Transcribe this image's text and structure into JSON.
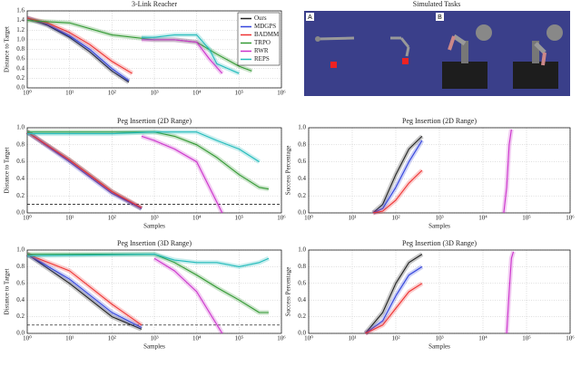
{
  "chart_data": [
    {
      "type": "line",
      "title": "3-Link Reacher",
      "ylabel": "Distance to Target",
      "legend": "upper right",
      "log_x": true,
      "grid": true,
      "xlim": [
        1,
        1000000
      ],
      "xticks": [
        {
          "value": 1,
          "label": "10⁰"
        },
        {
          "value": 10,
          "label": "10¹"
        },
        {
          "value": 100,
          "label": "10²"
        },
        {
          "value": 1000,
          "label": "10³"
        },
        {
          "value": 10000,
          "label": "10⁴"
        },
        {
          "value": 100000,
          "label": "10⁵"
        },
        {
          "value": 1000000,
          "label": "10⁶"
        }
      ],
      "ylim": [
        0,
        1.6
      ],
      "yticks": [
        {
          "value": 0,
          "label": "0.0"
        },
        {
          "value": 0.2,
          "label": "0.2"
        },
        {
          "value": 0.4,
          "label": "0.4"
        },
        {
          "value": 0.6,
          "label": "0.6"
        },
        {
          "value": 0.8,
          "label": "0.8"
        },
        {
          "value": 1.0,
          "label": "1.0"
        },
        {
          "value": 1.2,
          "label": "1.2"
        },
        {
          "value": 1.4,
          "label": "1.4"
        },
        {
          "value": 1.6,
          "label": "1.6"
        }
      ],
      "series": [
        {
          "name": "Ours",
          "color": "#222222",
          "x": [
            1,
            3,
            10,
            30,
            100,
            250
          ],
          "values": [
            1.45,
            1.3,
            1.05,
            0.75,
            0.35,
            0.12
          ]
        },
        {
          "name": "MDGPS",
          "color": "#3344dd",
          "x": [
            1,
            3,
            10,
            30,
            100,
            250
          ],
          "values": [
            1.45,
            1.32,
            1.08,
            0.8,
            0.4,
            0.15
          ]
        },
        {
          "name": "BADMM",
          "color": "#ee3333",
          "x": [
            1,
            3,
            10,
            30,
            100,
            300
          ],
          "values": [
            1.45,
            1.35,
            1.15,
            0.9,
            0.55,
            0.3
          ]
        },
        {
          "name": "TRPO",
          "color": "#339933",
          "x": [
            1,
            10,
            100,
            1000,
            3000,
            10000,
            30000,
            100000,
            200000
          ],
          "values": [
            1.4,
            1.35,
            1.1,
            1.0,
            1.0,
            0.95,
            0.7,
            0.45,
            0.35
          ]
        },
        {
          "name": "RWR",
          "color": "#cc33cc",
          "x": [
            500,
            1000,
            3000,
            10000,
            20000,
            40000
          ],
          "values": [
            1.0,
            1.0,
            1.0,
            0.95,
            0.6,
            0.3
          ]
        },
        {
          "name": "REPS",
          "color": "#22bbbb",
          "x": [
            500,
            1000,
            3000,
            10000,
            20000,
            30000,
            100000
          ],
          "values": [
            1.05,
            1.05,
            1.1,
            1.1,
            0.8,
            0.5,
            0.3
          ]
        }
      ]
    },
    {
      "type": "line",
      "title": "Peg Insertion (2D Range)",
      "xlabel": "Samples",
      "ylabel": "Distance to Target",
      "log_x": true,
      "grid": true,
      "hline": 0.1,
      "xlim": [
        1,
        1000000
      ],
      "xticks": [
        {
          "value": 1,
          "label": "10⁰"
        },
        {
          "value": 10,
          "label": "10¹"
        },
        {
          "value": 100,
          "label": "10²"
        },
        {
          "value": 1000,
          "label": "10³"
        },
        {
          "value": 10000,
          "label": "10⁴"
        },
        {
          "value": 100000,
          "label": "10⁵"
        },
        {
          "value": 1000000,
          "label": "10⁶"
        }
      ],
      "ylim": [
        0,
        1.0
      ],
      "yticks": [
        {
          "value": 0,
          "label": "0.0"
        },
        {
          "value": 0.2,
          "label": "0.2"
        },
        {
          "value": 0.4,
          "label": "0.4"
        },
        {
          "value": 0.6,
          "label": "0.6"
        },
        {
          "value": 0.8,
          "label": "0.8"
        },
        {
          "value": 1.0,
          "label": "1.0"
        }
      ],
      "series": [
        {
          "color": "#222222",
          "x": [
            1,
            10,
            100,
            500
          ],
          "values": [
            0.95,
            0.62,
            0.25,
            0.05
          ]
        },
        {
          "color": "#3344dd",
          "x": [
            1,
            10,
            100,
            500
          ],
          "values": [
            0.95,
            0.6,
            0.23,
            0.05
          ]
        },
        {
          "color": "#ee3333",
          "x": [
            1,
            10,
            100,
            500
          ],
          "values": [
            0.95,
            0.62,
            0.25,
            0.06
          ]
        },
        {
          "color": "#339933",
          "x": [
            1,
            100,
            1000,
            3000,
            10000,
            30000,
            100000,
            300000,
            500000
          ],
          "values": [
            0.95,
            0.95,
            0.95,
            0.9,
            0.8,
            0.65,
            0.45,
            0.3,
            0.28
          ]
        },
        {
          "color": "#cc33cc",
          "x": [
            500,
            1000,
            3000,
            10000,
            20000,
            40000
          ],
          "values": [
            0.9,
            0.85,
            0.75,
            0.6,
            0.3,
            0.0
          ]
        },
        {
          "color": "#22bbbb",
          "x": [
            1,
            100,
            1000,
            10000,
            30000,
            100000,
            300000
          ],
          "values": [
            0.93,
            0.93,
            0.95,
            0.95,
            0.85,
            0.75,
            0.6
          ]
        }
      ]
    },
    {
      "type": "line",
      "title": "Peg Insertion (2D Range)",
      "xlabel": "Samples",
      "ylabel": "Success Percentage",
      "log_x": true,
      "grid": true,
      "xlim": [
        1,
        1000000
      ],
      "xticks": [
        {
          "value": 1,
          "label": "10⁰"
        },
        {
          "value": 10,
          "label": "10¹"
        },
        {
          "value": 100,
          "label": "10²"
        },
        {
          "value": 1000,
          "label": "10³"
        },
        {
          "value": 10000,
          "label": "10⁴"
        },
        {
          "value": 100000,
          "label": "10⁵"
        },
        {
          "value": 1000000,
          "label": "10⁶"
        }
      ],
      "ylim": [
        0,
        1.0
      ],
      "yticks": [
        {
          "value": 0,
          "label": "0.0"
        },
        {
          "value": 0.2,
          "label": "0.2"
        },
        {
          "value": 0.4,
          "label": "0.4"
        },
        {
          "value": 0.6,
          "label": "0.6"
        },
        {
          "value": 0.8,
          "label": "0.8"
        },
        {
          "value": 1.0,
          "label": "1.0"
        }
      ],
      "series": [
        {
          "color": "#222222",
          "x": [
            30,
            50,
            100,
            200,
            400
          ],
          "values": [
            0,
            0.1,
            0.45,
            0.75,
            0.9
          ]
        },
        {
          "color": "#3344dd",
          "x": [
            30,
            50,
            100,
            200,
            400
          ],
          "values": [
            0,
            0.05,
            0.3,
            0.6,
            0.85
          ]
        },
        {
          "color": "#ee3333",
          "x": [
            30,
            50,
            100,
            200,
            400
          ],
          "values": [
            0,
            0.02,
            0.15,
            0.35,
            0.5
          ]
        },
        {
          "color": "#cc33cc",
          "x": [
            30000,
            35000,
            40000,
            45000
          ],
          "values": [
            0,
            0.3,
            0.8,
            0.98
          ]
        }
      ]
    },
    {
      "type": "line",
      "title": "Peg Insertion (3D Range)",
      "xlabel": "Samples",
      "ylabel": "Distance to Target",
      "log_x": true,
      "grid": true,
      "hline": 0.1,
      "xlim": [
        1,
        1000000
      ],
      "xticks": [
        {
          "value": 1,
          "label": "10⁰"
        },
        {
          "value": 10,
          "label": "10¹"
        },
        {
          "value": 100,
          "label": "10²"
        },
        {
          "value": 1000,
          "label": "10³"
        },
        {
          "value": 10000,
          "label": "10⁴"
        },
        {
          "value": 100000,
          "label": "10⁵"
        },
        {
          "value": 1000000,
          "label": "10⁶"
        }
      ],
      "ylim": [
        0,
        1.0
      ],
      "yticks": [
        {
          "value": 0,
          "label": "0.0"
        },
        {
          "value": 0.2,
          "label": "0.2"
        },
        {
          "value": 0.4,
          "label": "0.4"
        },
        {
          "value": 0.6,
          "label": "0.6"
        },
        {
          "value": 0.8,
          "label": "0.8"
        },
        {
          "value": 1.0,
          "label": "1.0"
        }
      ],
      "series": [
        {
          "color": "#222222",
          "x": [
            1,
            10,
            100,
            500
          ],
          "values": [
            0.95,
            0.6,
            0.2,
            0.05
          ]
        },
        {
          "color": "#3344dd",
          "x": [
            1,
            10,
            100,
            500
          ],
          "values": [
            0.95,
            0.65,
            0.25,
            0.07
          ]
        },
        {
          "color": "#ee3333",
          "x": [
            1,
            10,
            100,
            500
          ],
          "values": [
            0.95,
            0.75,
            0.35,
            0.1
          ]
        },
        {
          "color": "#339933",
          "x": [
            1,
            1000,
            3000,
            10000,
            30000,
            100000,
            300000,
            500000
          ],
          "values": [
            0.95,
            0.95,
            0.85,
            0.7,
            0.55,
            0.4,
            0.25,
            0.25
          ]
        },
        {
          "color": "#cc33cc",
          "x": [
            1000,
            3000,
            10000,
            20000,
            40000
          ],
          "values": [
            0.9,
            0.75,
            0.5,
            0.25,
            0.0
          ]
        },
        {
          "color": "#22bbbb",
          "x": [
            1,
            1000,
            3000,
            10000,
            30000,
            100000,
            300000,
            500000
          ],
          "values": [
            0.93,
            0.95,
            0.88,
            0.85,
            0.85,
            0.8,
            0.85,
            0.9
          ]
        }
      ]
    },
    {
      "type": "line",
      "title": "Peg Insertion (3D Range)",
      "xlabel": "Samples",
      "ylabel": "Success Percentage",
      "log_x": true,
      "grid": true,
      "xlim": [
        1,
        1000000
      ],
      "xticks": [
        {
          "value": 1,
          "label": "10⁰"
        },
        {
          "value": 10,
          "label": "10¹"
        },
        {
          "value": 100,
          "label": "10²"
        },
        {
          "value": 1000,
          "label": "10³"
        },
        {
          "value": 10000,
          "label": "10⁴"
        },
        {
          "value": 100000,
          "label": "10⁵"
        },
        {
          "value": 1000000,
          "label": "10⁶"
        }
      ],
      "ylim": [
        0,
        1.0
      ],
      "yticks": [
        {
          "value": 0,
          "label": "0.0"
        },
        {
          "value": 0.2,
          "label": "0.2"
        },
        {
          "value": 0.4,
          "label": "0.4"
        },
        {
          "value": 0.6,
          "label": "0.6"
        },
        {
          "value": 0.8,
          "label": "0.8"
        },
        {
          "value": 1.0,
          "label": "1.0"
        }
      ],
      "series": [
        {
          "color": "#222222",
          "x": [
            20,
            50,
            100,
            200,
            400
          ],
          "values": [
            0,
            0.25,
            0.6,
            0.85,
            0.95
          ]
        },
        {
          "color": "#3344dd",
          "x": [
            20,
            50,
            100,
            200,
            400
          ],
          "values": [
            0,
            0.15,
            0.45,
            0.7,
            0.8
          ]
        },
        {
          "color": "#ee3333",
          "x": [
            20,
            50,
            100,
            200,
            400
          ],
          "values": [
            0,
            0.1,
            0.3,
            0.5,
            0.6
          ]
        },
        {
          "color": "#cc33cc",
          "x": [
            35000,
            40000,
            45000,
            50000
          ],
          "values": [
            0,
            0.5,
            0.9,
            0.98
          ]
        }
      ]
    }
  ],
  "panel": {
    "title": "Simulated Tasks",
    "labels": [
      "A",
      "B"
    ]
  }
}
